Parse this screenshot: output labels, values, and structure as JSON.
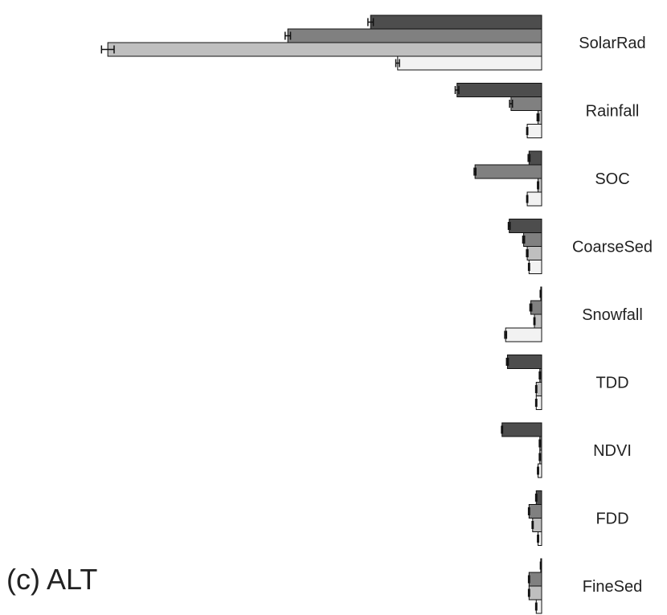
{
  "panel_label": "(c) ALT",
  "chart_data": {
    "type": "bar",
    "orientation": "horizontal",
    "categories": [
      "SolarRad",
      "Rainfall",
      "SOC",
      "CoarseSed",
      "Snowfall",
      "TDD",
      "NDVI",
      "FDD",
      "FineSed"
    ],
    "series": [
      {
        "color": "#4d4d4d",
        "values": [
          95,
          47,
          7,
          18,
          0.5,
          19,
          22,
          3,
          0.5
        ],
        "errors": [
          1.5,
          1,
          0.5,
          0.5,
          0.3,
          0.5,
          0.3,
          0.3,
          0.2
        ]
      },
      {
        "color": "#808080",
        "values": [
          141,
          17,
          37,
          10,
          6,
          1,
          1,
          7,
          7
        ],
        "errors": [
          1.5,
          0.8,
          0.5,
          0.5,
          0.5,
          0.3,
          0.3,
          0.3,
          0.3
        ]
      },
      {
        "color": "#bfbfbf",
        "values": [
          241,
          2,
          2,
          8,
          4,
          3,
          1,
          5,
          7
        ],
        "errors": [
          3.5,
          0.5,
          0.3,
          0.4,
          0.3,
          0.3,
          0.3,
          0.3,
          0.3
        ]
      },
      {
        "color": "#f2f2f2",
        "values": [
          80,
          8,
          8,
          7,
          20,
          3,
          2,
          2,
          3
        ],
        "errors": [
          1,
          0.3,
          0.3,
          0.3,
          0.5,
          0.3,
          0.3,
          0.3,
          0.3
        ]
      }
    ],
    "xlim": [
      0,
      245
    ],
    "title": "",
    "xlabel": "",
    "ylabel": "",
    "grid": false,
    "legend": "none",
    "axes_visible": false
  }
}
